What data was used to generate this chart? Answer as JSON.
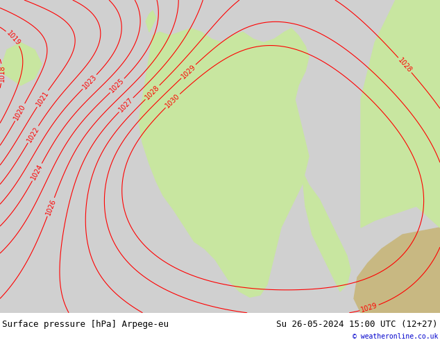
{
  "title_left": "Surface pressure [hPa] Arpege-eu",
  "title_right": "Su 26-05-2024 15:00 UTC (12+27)",
  "copyright": "© weatheronline.co.uk",
  "bg_color": "#d0d0d0",
  "land_color": "#c8e6a0",
  "sea_color": "#d0d0d0",
  "contour_color_red": "#ff0000",
  "contour_color_blue": "#0000ff",
  "label_fontsize": 7,
  "title_fontsize": 9,
  "copyright_fontsize": 7,
  "pressure_min": 1014,
  "pressure_max": 1030,
  "contour_interval": 1
}
